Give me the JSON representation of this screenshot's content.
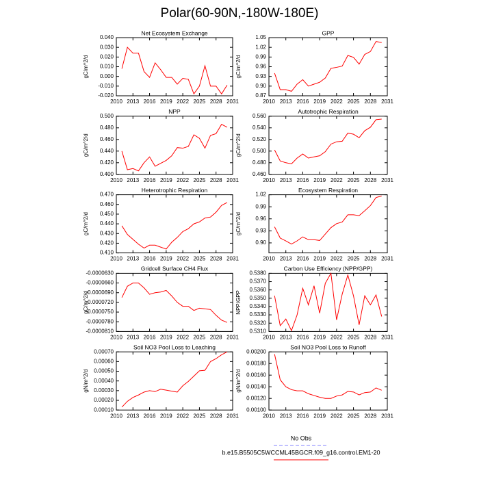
{
  "title": "Polar(60-90N,-180W-180E)",
  "legend": [
    {
      "name": "No Obs",
      "color": "#8080ff",
      "dash": true
    },
    {
      "name": "b.e15.B5505C5WCCML45BGCR.f09_g16.control.EM1-20",
      "color": "#ff0000",
      "dash": false
    }
  ],
  "chart_data": [
    {
      "type": "line",
      "title": "Net Ecosystem Exchange",
      "y_label": "gC/m^2/d",
      "color": "#ff0000",
      "x": [
        2011,
        2012,
        2013,
        2014,
        2015,
        2016,
        2017,
        2018,
        2019,
        2020,
        2021,
        2022,
        2023,
        2024,
        2025,
        2026,
        2027,
        2028,
        2029,
        2030
      ],
      "values": [
        0.008,
        0.03,
        0.024,
        0.024,
        0.005,
        -0.001,
        0.014,
        0.007,
        -0.001,
        -0.001,
        -0.008,
        -0.002,
        -0.003,
        -0.018,
        -0.01,
        0.011,
        -0.01,
        -0.01,
        -0.018,
        -0.009
      ],
      "xlim": [
        2010,
        2031
      ],
      "xticks": [
        2010,
        2013,
        2016,
        2019,
        2022,
        2025,
        2028,
        2031
      ],
      "ylim": [
        -0.02,
        0.04
      ],
      "yticks": [
        {
          "value": -0.02,
          "label": "-0.020"
        },
        {
          "value": -0.01,
          "label": "-0.010"
        },
        {
          "value": 0,
          "label": "0.000"
        },
        {
          "value": 0.01,
          "label": "0.010"
        },
        {
          "value": 0.02,
          "label": "0.020"
        },
        {
          "value": 0.03,
          "label": "0.030"
        },
        {
          "value": 0.04,
          "label": "0.040"
        }
      ]
    },
    {
      "type": "line",
      "title": "GPP",
      "y_label": "gC/m^2/d",
      "color": "#ff0000",
      "x": [
        2011,
        2012,
        2013,
        2014,
        2015,
        2016,
        2017,
        2018,
        2019,
        2020,
        2021,
        2022,
        2023,
        2024,
        2025,
        2026,
        2027,
        2028,
        2029,
        2030
      ],
      "values": [
        0.94,
        0.889,
        0.889,
        0.884,
        0.906,
        0.92,
        0.9,
        0.906,
        0.912,
        0.925,
        0.955,
        0.958,
        0.962,
        0.995,
        0.989,
        0.968,
        0.998,
        1.007,
        1.038,
        1.035
      ],
      "xlim": [
        2010,
        2031
      ],
      "xticks": [
        2010,
        2013,
        2016,
        2019,
        2022,
        2025,
        2028,
        2031
      ],
      "ylim": [
        0.87,
        1.05
      ],
      "yticks": [
        0.87,
        {
          "value": 0.9,
          "label": "0.90"
        },
        0.93,
        0.96,
        0.99,
        1.02,
        1.05
      ]
    },
    {
      "type": "line",
      "title": "NPP",
      "y_label": "gC/m^2/d",
      "color": "#ff0000",
      "x": [
        2011,
        2012,
        2013,
        2014,
        2015,
        2016,
        2017,
        2018,
        2019,
        2020,
        2021,
        2022,
        2023,
        2024,
        2025,
        2026,
        2027,
        2028,
        2029,
        2030
      ],
      "values": [
        0.44,
        0.408,
        0.41,
        0.406,
        0.42,
        0.43,
        0.414,
        0.419,
        0.424,
        0.432,
        0.446,
        0.445,
        0.448,
        0.468,
        0.462,
        0.445,
        0.467,
        0.47,
        0.486,
        0.481
      ],
      "xlim": [
        2010,
        2031
      ],
      "xticks": [
        2010,
        2013,
        2016,
        2019,
        2022,
        2025,
        2028,
        2031
      ],
      "ylim": [
        0.4,
        0.5
      ],
      "yticks": [
        {
          "value": 0.4,
          "label": "0.400"
        },
        {
          "value": 0.42,
          "label": "0.420"
        },
        {
          "value": 0.44,
          "label": "0.440"
        },
        {
          "value": 0.46,
          "label": "0.460"
        },
        {
          "value": 0.48,
          "label": "0.480"
        },
        {
          "value": 0.5,
          "label": "0.500"
        }
      ]
    },
    {
      "type": "line",
      "title": "Autotrophic Respiration",
      "y_label": "gC/m^2/d",
      "color": "#ff0000",
      "x": [
        2011,
        2012,
        2013,
        2014,
        2015,
        2016,
        2017,
        2018,
        2019,
        2020,
        2021,
        2022,
        2023,
        2024,
        2025,
        2026,
        2027,
        2028,
        2029,
        2030
      ],
      "values": [
        0.502,
        0.483,
        0.48,
        0.478,
        0.488,
        0.495,
        0.488,
        0.49,
        0.492,
        0.499,
        0.512,
        0.516,
        0.517,
        0.531,
        0.529,
        0.523,
        0.535,
        0.541,
        0.554,
        0.555
      ],
      "xlim": [
        2010,
        2031
      ],
      "xticks": [
        2010,
        2013,
        2016,
        2019,
        2022,
        2025,
        2028,
        2031
      ],
      "ylim": [
        0.46,
        0.56
      ],
      "yticks": [
        {
          "value": 0.46,
          "label": "0.460"
        },
        {
          "value": 0.48,
          "label": "0.480"
        },
        {
          "value": 0.5,
          "label": "0.500"
        },
        {
          "value": 0.52,
          "label": "0.520"
        },
        {
          "value": 0.54,
          "label": "0.540"
        },
        {
          "value": 0.56,
          "label": "0.560"
        }
      ]
    },
    {
      "type": "line",
      "title": "Heterotrophic Respiration",
      "y_label": "gC/m^2/d",
      "color": "#ff0000",
      "x": [
        2011,
        2012,
        2013,
        2014,
        2015,
        2016,
        2017,
        2018,
        2019,
        2020,
        2021,
        2022,
        2023,
        2024,
        2025,
        2026,
        2027,
        2028,
        2029,
        2030
      ],
      "values": [
        0.438,
        0.429,
        0.424,
        0.419,
        0.415,
        0.418,
        0.418,
        0.416,
        0.414,
        0.421,
        0.426,
        0.432,
        0.435,
        0.44,
        0.442,
        0.446,
        0.447,
        0.452,
        0.459,
        0.462
      ],
      "xlim": [
        2010,
        2031
      ],
      "xticks": [
        2010,
        2013,
        2016,
        2019,
        2022,
        2025,
        2028,
        2031
      ],
      "ylim": [
        0.41,
        0.47
      ],
      "yticks": [
        {
          "value": 0.41,
          "label": "0.410"
        },
        {
          "value": 0.42,
          "label": "0.420"
        },
        {
          "value": 0.43,
          "label": "0.430"
        },
        {
          "value": 0.44,
          "label": "0.440"
        },
        {
          "value": 0.45,
          "label": "0.450"
        },
        {
          "value": 0.46,
          "label": "0.460"
        },
        {
          "value": 0.47,
          "label": "0.470"
        }
      ]
    },
    {
      "type": "line",
      "title": "Ecosystem Respiration",
      "y_label": "gC/m^2/d",
      "color": "#ff0000",
      "x": [
        2011,
        2012,
        2013,
        2014,
        2015,
        2016,
        2017,
        2018,
        2019,
        2020,
        2021,
        2022,
        2023,
        2024,
        2025,
        2026,
        2027,
        2028,
        2029,
        2030
      ],
      "values": [
        0.94,
        0.912,
        0.905,
        0.897,
        0.905,
        0.915,
        0.908,
        0.908,
        0.906,
        0.922,
        0.938,
        0.948,
        0.952,
        0.97,
        0.97,
        0.968,
        0.98,
        0.993,
        1.013,
        1.017
      ],
      "xlim": [
        2010,
        2031
      ],
      "xticks": [
        2010,
        2013,
        2016,
        2019,
        2022,
        2025,
        2028,
        2031
      ],
      "ylim": [
        0.875,
        1.02
      ],
      "yticks": [
        {
          "value": 0.9,
          "label": "0.90"
        },
        0.93,
        0.96,
        0.99,
        1.02
      ]
    },
    {
      "type": "line",
      "title": "Gridcell Surface CH4 Flux",
      "y_label": "gC/m^2/d",
      "color": "#ff0000",
      "x": [
        2011,
        2012,
        2013,
        2014,
        2015,
        2016,
        2017,
        2018,
        2019,
        2020,
        2021,
        2022,
        2023,
        2024,
        2025,
        2026,
        2027,
        2028,
        2029,
        2030
      ],
      "values": [
        -7.05e-05,
        -6.7e-05,
        -6.6e-05,
        -6.6e-05,
        -6.75e-05,
        -6.95e-05,
        -6.9e-05,
        -6.88e-05,
        -6.83e-05,
        -7e-05,
        -7.2e-05,
        -7.32e-05,
        -7.32e-05,
        -7.45e-05,
        -7.38e-05,
        -7.4e-05,
        -7.42e-05,
        -7.6e-05,
        -7.75e-05,
        -7.82e-05
      ],
      "xlim": [
        2010,
        2031
      ],
      "xticks": [
        2010,
        2013,
        2016,
        2019,
        2022,
        2025,
        2028,
        2031
      ],
      "ylim": [
        -8.1e-05,
        -6.3e-05
      ],
      "yticks": [
        {
          "value": -8.1e-05,
          "label": "-0.0000810"
        },
        {
          "value": -7.8e-05,
          "label": "-0.0000780"
        },
        {
          "value": -7.5e-05,
          "label": "-0.0000750"
        },
        {
          "value": -7.2e-05,
          "label": "-0.0000720"
        },
        {
          "value": -6.9e-05,
          "label": "-0.0000690"
        },
        {
          "value": -6.6e-05,
          "label": "-0.0000660"
        },
        {
          "value": -6.3e-05,
          "label": "-0.0000630"
        }
      ]
    },
    {
      "type": "line",
      "title": "Carbon Use Efficiency (NPP/GPP)",
      "y_label": "NPP/GPP",
      "color": "#ff0000",
      "x": [
        2011,
        2012,
        2013,
        2014,
        2015,
        2016,
        2017,
        2018,
        2019,
        2020,
        2021,
        2022,
        2023,
        2024,
        2025,
        2026,
        2027,
        2028,
        2029,
        2030
      ],
      "values": [
        0.5353,
        0.5317,
        0.5325,
        0.5311,
        0.533,
        0.5362,
        0.5342,
        0.5365,
        0.5332,
        0.5368,
        0.538,
        0.5324,
        0.5355,
        0.5378,
        0.5353,
        0.5318,
        0.5353,
        0.5342,
        0.5354,
        0.5328
      ],
      "xlim": [
        2010,
        2031
      ],
      "xticks": [
        2010,
        2013,
        2016,
        2019,
        2022,
        2025,
        2028,
        2031
      ],
      "ylim": [
        0.531,
        0.538
      ],
      "yticks": [
        {
          "value": 0.531,
          "label": "0.5310"
        },
        {
          "value": 0.532,
          "label": "0.5320"
        },
        {
          "value": 0.533,
          "label": "0.5330"
        },
        {
          "value": 0.534,
          "label": "0.5340"
        },
        {
          "value": 0.535,
          "label": "0.5350"
        },
        {
          "value": 0.536,
          "label": "0.5360"
        },
        {
          "value": 0.537,
          "label": "0.5370"
        },
        {
          "value": 0.538,
          "label": "0.5380"
        }
      ]
    },
    {
      "type": "line",
      "title": "Soil NO3 Pool Loss to Leaching",
      "y_label": "gN/m^2/d",
      "color": "#ff0000",
      "x": [
        2011,
        2012,
        2013,
        2014,
        2015,
        2016,
        2017,
        2018,
        2019,
        2020,
        2021,
        2022,
        2023,
        2024,
        2025,
        2026,
        2027,
        2028,
        2029,
        2030
      ],
      "values": [
        0.00013,
        0.00019,
        0.00023,
        0.000255,
        0.000285,
        0.0003,
        0.00029,
        0.000315,
        0.000305,
        0.000295,
        0.000285,
        0.00035,
        0.000395,
        0.00045,
        0.000505,
        0.00051,
        0.0006,
        0.00063,
        0.00067,
        0.0007
      ],
      "xlim": [
        2010,
        2031
      ],
      "xticks": [
        2010,
        2013,
        2016,
        2019,
        2022,
        2025,
        2028,
        2031
      ],
      "ylim": [
        0.0001,
        0.0007
      ],
      "yticks": [
        {
          "value": 0.0001,
          "label": "0.00010"
        },
        {
          "value": 0.0002,
          "label": "0.00020"
        },
        {
          "value": 0.0003,
          "label": "0.00030"
        },
        {
          "value": 0.0004,
          "label": "0.00040"
        },
        {
          "value": 0.0005,
          "label": "0.00050"
        },
        {
          "value": 0.0006,
          "label": "0.00060"
        },
        {
          "value": 0.0007,
          "label": "0.00070"
        }
      ]
    },
    {
      "type": "line",
      "title": "Soil NO3 Pool Loss to Runoff",
      "y_label": "gN/m^2/d",
      "color": "#ff0000",
      "x": [
        2011,
        2012,
        2013,
        2014,
        2015,
        2016,
        2017,
        2018,
        2019,
        2020,
        2021,
        2022,
        2023,
        2024,
        2025,
        2026,
        2027,
        2028,
        2029,
        2030
      ],
      "values": [
        0.00196,
        0.00152,
        0.0014,
        0.00135,
        0.00133,
        0.00133,
        0.00128,
        0.00125,
        0.00122,
        0.0012,
        0.0012,
        0.00124,
        0.00126,
        0.00132,
        0.00131,
        0.00126,
        0.0013,
        0.00131,
        0.00138,
        0.00134
      ],
      "xlim": [
        2010,
        2031
      ],
      "xticks": [
        2010,
        2013,
        2016,
        2019,
        2022,
        2025,
        2028,
        2031
      ],
      "ylim": [
        0.001,
        0.002
      ],
      "yticks": [
        {
          "value": 0.001,
          "label": "0.00100"
        },
        {
          "value": 0.0012,
          "label": "0.00120"
        },
        {
          "value": 0.0014,
          "label": "0.00140"
        },
        {
          "value": 0.0016,
          "label": "0.00160"
        },
        {
          "value": 0.0018,
          "label": "0.00180"
        },
        {
          "value": 0.002,
          "label": "0.00200"
        }
      ]
    }
  ]
}
